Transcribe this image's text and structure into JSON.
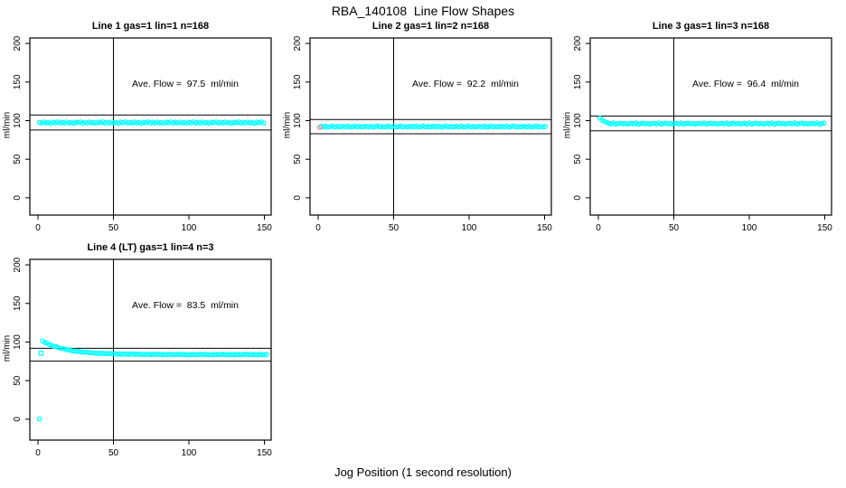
{
  "figure": {
    "title": "RBA_140108  Line Flow Shapes",
    "xlabel": "Jog Position (1 second resolution)",
    "background": "#ffffff"
  },
  "colors": {
    "points": "#00FFFF",
    "special": "#FA8072",
    "axis": "#000000",
    "text": "#000000"
  },
  "chart_data": [
    {
      "type": "scatter",
      "title": "Line 1 gas=1 lin=1 n=168",
      "annotation": "Ave. Flow =  97.5  ml/min",
      "ave_flow": 97.5,
      "ylabel": "ml/min",
      "xlim": [
        0,
        150
      ],
      "ylim": [
        0,
        200
      ],
      "x_ticks": [
        0,
        50,
        100,
        150
      ],
      "y_ticks": [
        0,
        50,
        100,
        150,
        200
      ],
      "ref_lines_y": [
        107.3,
        87.8
      ],
      "ref_line_x": 50,
      "point_color": "#00FFFF",
      "marker": "open-circle",
      "points": {
        "x0": 1,
        "dx": 1.5,
        "y": [
          97.8,
          96.9,
          98.2,
          97.0,
          97.5,
          96.6,
          98.0,
          97.3,
          98.4,
          96.8,
          97.8,
          96.9,
          98.2,
          97.0,
          97.5,
          96.6,
          98.0,
          97.3,
          98.4,
          96.8,
          97.8,
          96.9,
          98.2,
          97.0,
          97.5,
          96.6,
          98.0,
          97.3,
          98.4,
          96.8,
          97.8,
          96.9,
          98.2,
          97.0,
          97.5,
          96.6,
          98.0,
          97.3,
          98.4,
          96.8,
          97.8,
          96.9,
          98.2,
          97.0,
          97.5,
          96.6,
          98.0,
          97.3,
          98.4,
          96.8,
          97.8,
          96.9,
          98.2,
          97.0,
          97.5,
          96.6,
          98.0,
          97.3,
          98.4,
          96.8,
          97.8,
          96.9,
          98.2,
          97.0,
          97.5,
          96.6,
          98.0,
          97.3,
          98.4,
          96.8,
          97.8,
          96.9,
          98.2,
          97.0,
          97.5,
          96.6,
          98.0,
          97.3,
          98.4,
          96.8,
          97.8,
          96.9,
          98.2,
          97.0,
          97.5,
          96.6,
          98.0,
          97.3,
          98.4,
          96.8,
          97.8,
          96.9,
          98.2,
          97.0,
          97.5,
          96.6,
          98.0,
          97.3,
          98.4,
          96.8
        ]
      },
      "special_points": []
    },
    {
      "type": "scatter",
      "title": "Line 2 gas=1 lin=2 n=168",
      "annotation": "Ave. Flow =  92.2  ml/min",
      "ave_flow": 92.2,
      "ylabel": "ml/min",
      "xlim": [
        0,
        150
      ],
      "ylim": [
        0,
        200
      ],
      "x_ticks": [
        0,
        50,
        100,
        150
      ],
      "y_ticks": [
        0,
        50,
        100,
        150,
        200
      ],
      "ref_lines_y": [
        101.4,
        83.0
      ],
      "ref_line_x": 50,
      "point_color": "#00FFFF",
      "marker": "open-circle",
      "points": {
        "x0": 2,
        "dx": 1.5,
        "y": [
          92.6,
          91.8,
          92.9,
          91.5,
          92.2,
          93.0,
          91.7,
          92.5,
          91.9,
          92.3,
          92.6,
          91.8,
          92.9,
          91.5,
          92.2,
          93.0,
          91.7,
          92.5,
          91.9,
          92.3,
          92.6,
          91.8,
          92.9,
          91.5,
          92.2,
          93.0,
          91.7,
          92.5,
          91.9,
          92.3,
          92.6,
          91.8,
          92.9,
          91.5,
          92.2,
          93.0,
          91.7,
          92.5,
          91.9,
          92.3,
          92.6,
          91.8,
          92.9,
          91.5,
          92.2,
          93.0,
          91.7,
          92.5,
          91.9,
          92.3,
          92.6,
          91.8,
          92.9,
          91.5,
          92.2,
          93.0,
          91.7,
          92.5,
          91.9,
          92.3,
          92.6,
          91.8,
          92.9,
          91.5,
          92.2,
          93.0,
          91.7,
          92.5,
          91.9,
          92.3,
          92.6,
          91.8,
          92.9,
          91.5,
          92.2,
          93.0,
          91.7,
          92.5,
          91.9,
          92.3,
          92.6,
          91.8,
          92.9,
          91.5,
          92.2,
          93.0,
          91.7,
          92.5,
          91.9,
          92.3,
          92.6,
          91.8,
          92.9,
          91.5,
          92.2,
          93.0,
          91.7,
          92.5,
          91.9,
          92.3
        ]
      },
      "special_points": [
        {
          "x": 1,
          "y": 91.3,
          "color": "#FA8072",
          "shape": "circle"
        }
      ]
    },
    {
      "type": "scatter",
      "title": "Line 3 gas=1 lin=3 n=168",
      "annotation": "Ave. Flow =  96.4  ml/min",
      "ave_flow": 96.4,
      "ylabel": "ml/min",
      "xlim": [
        0,
        150
      ],
      "ylim": [
        0,
        200
      ],
      "x_ticks": [
        0,
        50,
        100,
        150
      ],
      "y_ticks": [
        0,
        50,
        100,
        150,
        200
      ],
      "ref_lines_y": [
        106.0,
        86.8
      ],
      "ref_line_x": 50,
      "point_color": "#00FFFF",
      "marker": "open-circle",
      "points": {
        "x0": 1,
        "dx": 1.5,
        "y": [
          103.2,
          100.8,
          99.0,
          97.8,
          96.6,
          95.7,
          97.0,
          95.5,
          96.2,
          96.9,
          95.8,
          96.5,
          95.6,
          96.2,
          96.6,
          95.7,
          97.0,
          95.5,
          96.2,
          96.9,
          95.8,
          96.5,
          95.6,
          96.2,
          96.6,
          95.7,
          97.0,
          95.5,
          96.2,
          96.9,
          95.8,
          96.5,
          95.6,
          96.2,
          96.6,
          95.7,
          97.0,
          95.5,
          96.2,
          96.9,
          95.8,
          96.5,
          95.6,
          96.2,
          96.6,
          95.7,
          97.0,
          95.5,
          96.2,
          96.9,
          95.8,
          96.5,
          95.6,
          96.2,
          96.6,
          95.7,
          97.0,
          95.5,
          96.2,
          96.9,
          95.8,
          96.5,
          95.6,
          96.2,
          96.6,
          95.7,
          97.0,
          95.5,
          96.2,
          96.9,
          95.8,
          96.5,
          95.6,
          96.2,
          96.6,
          95.7,
          97.0,
          95.5,
          96.2,
          96.9,
          95.8,
          96.5,
          95.6,
          96.2,
          96.6,
          95.7,
          97.0,
          95.5,
          96.2,
          96.9,
          95.8,
          96.5,
          95.6,
          96.2,
          96.6,
          95.7,
          97.0,
          95.5,
          96.2,
          96.9
        ]
      },
      "special_points": []
    },
    {
      "type": "scatter",
      "title": "Line 4 (LT) gas=1 lin=4 n=3",
      "annotation": "Ave. Flow =  83.5  ml/min",
      "ave_flow": 83.5,
      "ylabel": "ml/min",
      "xlim": [
        0,
        150
      ],
      "ylim": [
        0,
        200
      ],
      "x_ticks": [
        0,
        50,
        100,
        150
      ],
      "y_ticks": [
        0,
        50,
        100,
        150,
        200
      ],
      "ref_lines_y": [
        91.9,
        75.2
      ],
      "ref_line_x": 50,
      "point_color": "#00FFFF",
      "marker": "open-circle",
      "points": {
        "x0": 3,
        "dx": 1.5,
        "y": [
          101.6,
          99.5,
          98.7,
          96.7,
          95.9,
          94.4,
          94.1,
          92.9,
          91.8,
          91.5,
          91.0,
          89.8,
          89.9,
          88.7,
          88.6,
          87.7,
          88.0,
          87.4,
          86.7,
          87.0,
          86.8,
          86.0,
          86.4,
          85.5,
          85.7,
          85.1,
          85.6,
          85.2,
          84.8,
          85.2,
          85.2,
          84.6,
          85.1,
          84.3,
          84.6,
          84.1,
          84.7,
          84.3,
          84.0,
          84.5,
          84.5,
          84.0,
          84.5,
          83.8,
          84.2,
          83.7,
          84.3,
          84.0,
          83.7,
          84.2,
          84.3,
          83.7,
          84.3,
          83.6,
          84.0,
          83.5,
          84.2,
          83.9,
          83.6,
          84.0,
          84.1,
          83.6,
          84.2,
          83.5,
          83.9,
          83.4,
          84.1,
          83.8,
          83.5,
          84.0,
          84.1,
          83.6,
          84.2,
          83.5,
          83.9,
          83.4,
          84.1,
          83.8,
          83.5,
          84.0,
          84.1,
          83.6,
          84.2,
          83.5,
          83.9,
          83.4,
          84.1,
          83.8,
          83.5,
          84.0,
          84.1,
          83.6,
          84.2,
          83.5,
          83.9,
          83.4,
          84.1,
          83.8,
          83.5,
          84.0
        ]
      },
      "special_points": [
        {
          "x": 1,
          "y": 0.5,
          "color": "#00FFFF",
          "shape": "circle"
        },
        {
          "x": 2,
          "y": 85.5,
          "color": "#00FFFF",
          "shape": "square"
        }
      ]
    }
  ]
}
